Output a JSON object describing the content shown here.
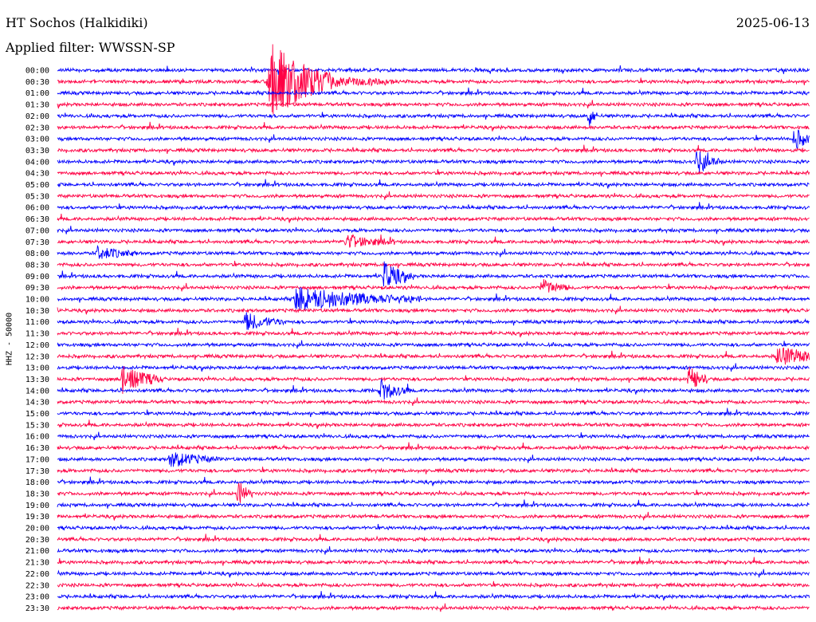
{
  "header": {
    "station": "HT Sochos (Halkidiki)",
    "date": "2025-06-13",
    "filter": "Applied filter: WWSSN-SP"
  },
  "chart_data": {
    "type": "line",
    "ylabel": "HHZ - 50000",
    "colors": [
      "#0000ff",
      "#ff0044"
    ],
    "rows": [
      "00:00",
      "00:30",
      "01:00",
      "01:30",
      "02:00",
      "02:30",
      "03:00",
      "03:30",
      "04:00",
      "04:30",
      "05:00",
      "05:30",
      "06:00",
      "06:30",
      "07:00",
      "07:30",
      "08:00",
      "08:30",
      "09:00",
      "09:30",
      "10:00",
      "10:30",
      "11:00",
      "11:30",
      "12:00",
      "12:30",
      "13:00",
      "13:30",
      "14:00",
      "14:30",
      "15:00",
      "15:30",
      "16:00",
      "16:30",
      "17:00",
      "17:30",
      "18:00",
      "18:30",
      "19:00",
      "19:30",
      "20:00",
      "20:30",
      "21:00",
      "21:30",
      "22:00",
      "22:30",
      "23:00",
      "23:30"
    ],
    "events": [
      {
        "row": "00:30",
        "minute": 8.5,
        "amp": 2.6,
        "dur": 1.2
      },
      {
        "row": "00:30",
        "minute": 8.4,
        "amp": 1.0,
        "dur": 2.5
      },
      {
        "row": "02:00",
        "minute": 21.2,
        "amp": 1.0,
        "dur": 0.2
      },
      {
        "row": "03:00",
        "minute": 29.4,
        "amp": 1.0,
        "dur": 0.4
      },
      {
        "row": "04:00",
        "minute": 25.5,
        "amp": 1.0,
        "dur": 0.5
      },
      {
        "row": "07:30",
        "minute": 11.5,
        "amp": 0.6,
        "dur": 1.0
      },
      {
        "row": "08:00",
        "minute": 1.6,
        "amp": 0.6,
        "dur": 0.8
      },
      {
        "row": "09:00",
        "minute": 13.0,
        "amp": 1.3,
        "dur": 0.6
      },
      {
        "row": "09:30",
        "minute": 19.3,
        "amp": 0.7,
        "dur": 0.6
      },
      {
        "row": "10:00",
        "minute": 9.5,
        "amp": 1.1,
        "dur": 2.5
      },
      {
        "row": "11:00",
        "minute": 7.5,
        "amp": 0.8,
        "dur": 0.8
      },
      {
        "row": "12:30",
        "minute": 28.7,
        "amp": 0.8,
        "dur": 1.5
      },
      {
        "row": "13:30",
        "minute": 2.6,
        "amp": 1.3,
        "dur": 0.8
      },
      {
        "row": "13:30",
        "minute": 25.2,
        "amp": 1.2,
        "dur": 0.4
      },
      {
        "row": "14:00",
        "minute": 12.9,
        "amp": 0.9,
        "dur": 0.6
      },
      {
        "row": "17:00",
        "minute": 4.5,
        "amp": 0.7,
        "dur": 1.0
      },
      {
        "row": "18:30",
        "minute": 7.2,
        "amp": 1.2,
        "dur": 0.3
      }
    ]
  }
}
